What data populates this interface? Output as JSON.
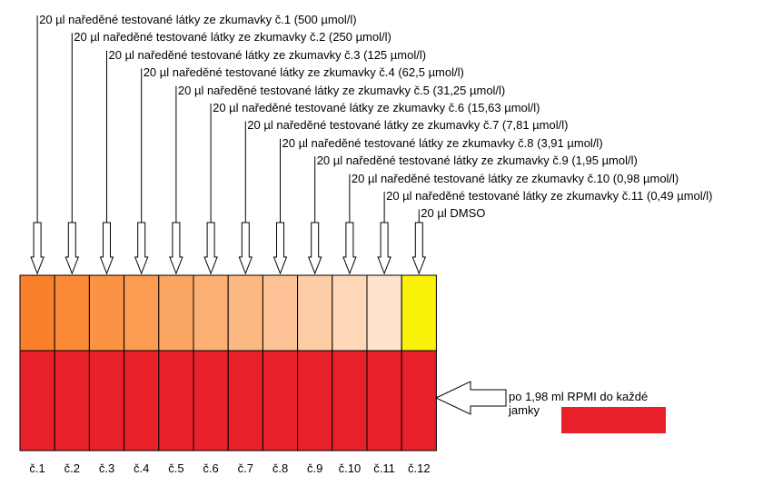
{
  "labels": [
    "20 µl naředěné testované látky ze zkumavky č.1 (500 µmol/l)",
    "20 µl naředěné testované látky ze zkumavky č.2 (250 µmol/l)",
    "20  µl naředěné testované látky ze zkumavky č.3 (125 µmol/l)",
    "20 µl naředěné testované látky ze zkumavky č.4 (62,5 µmol/l)",
    "20 µl naředěné testované látky ze zkumavky č.5 (31,25 µmol/l)",
    "20 µl naředěné testované látky ze zkumavky č.6 (15,63 µmol/l)",
    "20 µl naředěné testované látky ze zkumavky č.7 (7,81 µmol/l)",
    "20 µl naředěné testované látky ze zkumavky č.8 (3,91 µmol/l)",
    "20 µl naředěné testované látky ze zkumavky č.9 (1,95 µmol/l)",
    "20 µl naředěné testované látky ze zkumavky č.10 (0,98 µmol/l)",
    "20 µl naředěné testované látky ze zkumavky č.11 (0,49 µmol/l)",
    "20 µl DMSO"
  ],
  "well_labels": [
    "č.1",
    "č.2",
    "č.3",
    "č.4",
    "č.5",
    "č.6",
    "č.7",
    "č.8",
    "č.9",
    "č.10",
    "č.11",
    "č.12"
  ],
  "top_colors": [
    "#fa7f2a",
    "#fa8a37",
    "#fb9344",
    "#fb9c52",
    "#fca664",
    "#fcb074",
    "#fcb982",
    "#fdc396",
    "#fdcda6",
    "#fed8b8",
    "#fee3cd",
    "#fbf20a"
  ],
  "bottom_color": "#e8202a",
  "rpmi_label": "po 1,98 ml RPMI do každé\njamky",
  "legend_color": "#e8202a"
}
